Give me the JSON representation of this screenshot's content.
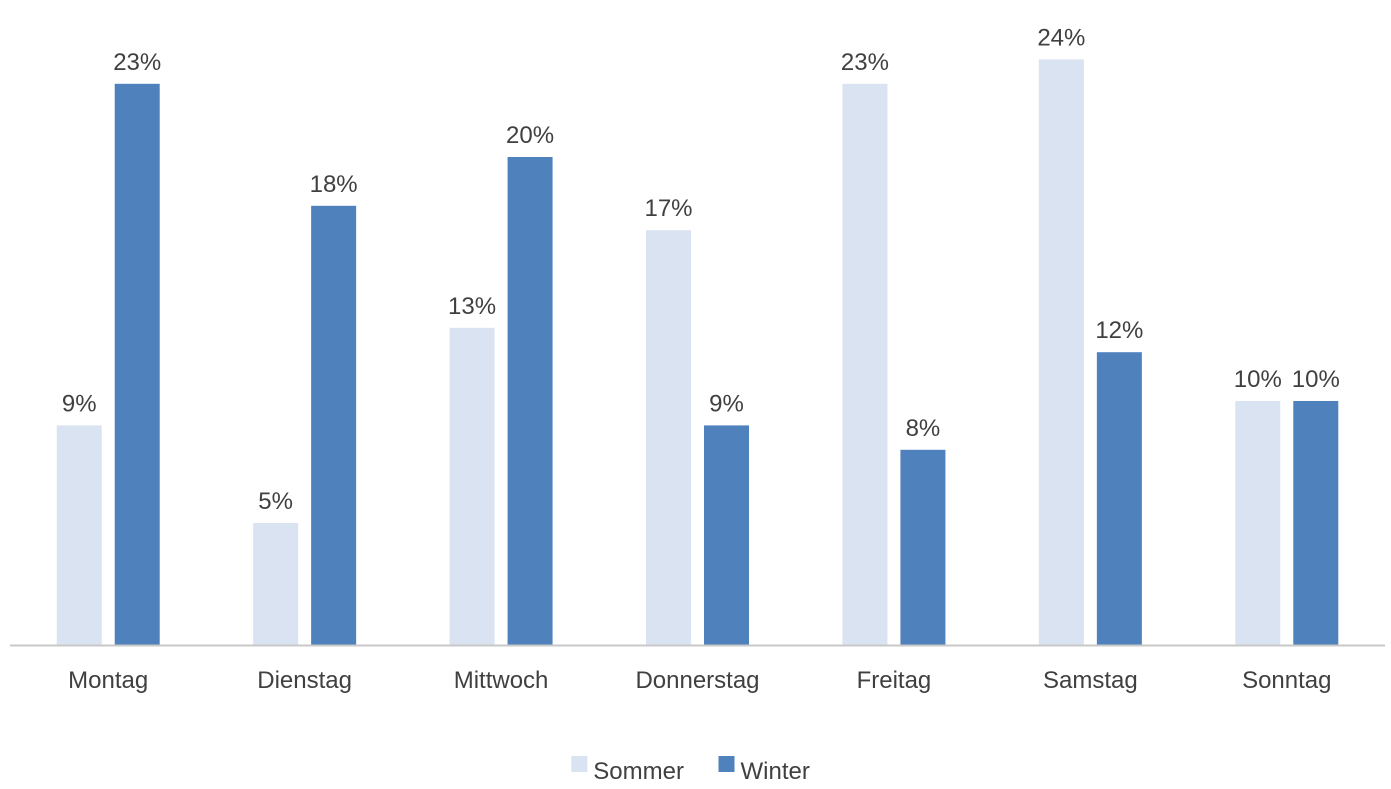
{
  "chart_data": {
    "type": "bar",
    "categories": [
      "Montag",
      "Dienstag",
      "Mittwoch",
      "Donnerstag",
      "Freitag",
      "Samstag",
      "Sonntag"
    ],
    "series": [
      {
        "name": "Sommer",
        "color": "#dae3f1",
        "values": [
          9,
          5,
          13,
          17,
          23,
          24,
          10
        ],
        "labels": [
          "9%",
          "5%",
          "13%",
          "17%",
          "23%",
          "24%",
          "10%"
        ]
      },
      {
        "name": "Winter",
        "color": "#4f81bd",
        "values": [
          23,
          18,
          20,
          9,
          8,
          12,
          10
        ],
        "labels": [
          "23%",
          "18%",
          "20%",
          "9%",
          "8%",
          "12%",
          "10%"
        ]
      }
    ],
    "ylim": [
      0,
      26
    ],
    "axis_color": "#c8c8c8",
    "grid": false,
    "legend_position": "bottom-center"
  }
}
